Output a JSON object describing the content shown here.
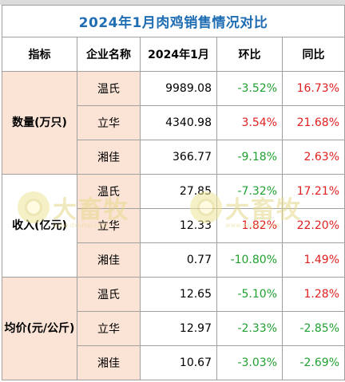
{
  "title": "2024年1月肉鸡销售情况对比",
  "headers": [
    "指标",
    "企业名称",
    "2024年1月",
    "环比",
    "同比"
  ],
  "groups": [
    {
      "label": "数量(万只)",
      "rows": [
        {
          "company": "温氏",
          "value": "9989.08",
          "mom": "-3.52%",
          "yoy": "16.73%"
        },
        {
          "company": "立华",
          "value": "4340.98",
          "mom": "3.54%",
          "yoy": "21.68%"
        },
        {
          "company": "湘佳",
          "value": "366.77",
          "mom": "-9.18%",
          "yoy": "2.63%"
        }
      ]
    },
    {
      "label": "收入(亿元)",
      "rows": [
        {
          "company": "温氏",
          "value": "27.85",
          "mom": "-7.32%",
          "yoy": "17.21%"
        },
        {
          "company": "立华",
          "value": "12.33",
          "mom": "1.82%",
          "yoy": "22.20%"
        },
        {
          "company": "湘佳",
          "value": "0.77",
          "mom": "-10.80%",
          "yoy": "1.49%"
        }
      ]
    },
    {
      "label": "均价(元/公斤)",
      "rows": [
        {
          "company": "温氏",
          "value": "12.65",
          "mom": "-5.10%",
          "yoy": "1.28%"
        },
        {
          "company": "立华",
          "value": "12.97",
          "mom": "-2.33%",
          "yoy": "-2.85%"
        },
        {
          "company": "湘佳",
          "value": "10.67",
          "mom": "-3.03%",
          "yoy": "-2.69%"
        }
      ]
    }
  ],
  "watermark": {
    "text": "大畜牧",
    "subtext": "www.dxumu.com"
  },
  "colors": {
    "title": "#1f6db3",
    "highlight": "#fbe4d6",
    "up": "#e02020",
    "down": "#20a030"
  }
}
